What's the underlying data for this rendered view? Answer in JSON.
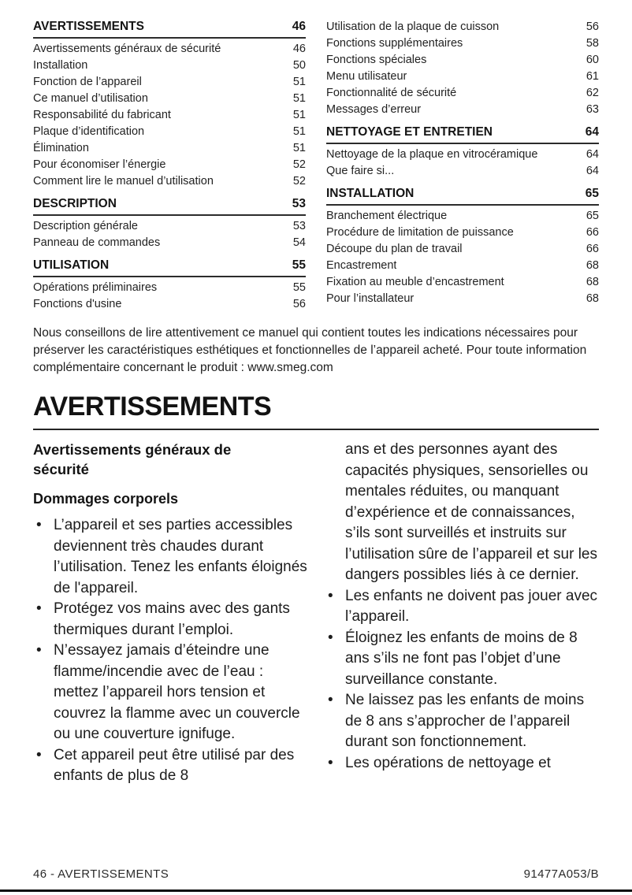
{
  "toc": {
    "left": [
      {
        "type": "header",
        "label": "AVERTISSEMENTS",
        "page": "46"
      },
      {
        "type": "entry",
        "label": "Avertissements généraux de sécurité",
        "page": "46"
      },
      {
        "type": "entry",
        "label": "Installation",
        "page": "50"
      },
      {
        "type": "entry",
        "label": "Fonction de l’appareil",
        "page": "51"
      },
      {
        "type": "entry",
        "label": "Ce manuel d’utilisation",
        "page": "51"
      },
      {
        "type": "entry",
        "label": "Responsabilité du fabricant",
        "page": "51"
      },
      {
        "type": "entry",
        "label": "Plaque d’identification",
        "page": "51"
      },
      {
        "type": "entry",
        "label": "Élimination",
        "page": "51"
      },
      {
        "type": "entry",
        "label": "Pour économiser l’énergie",
        "page": "52"
      },
      {
        "type": "entry",
        "label": "Comment lire le manuel d’utilisation",
        "page": "52"
      },
      {
        "type": "header",
        "label": "DESCRIPTION",
        "page": "53"
      },
      {
        "type": "entry",
        "label": "Description générale",
        "page": "53"
      },
      {
        "type": "entry",
        "label": "Panneau de commandes",
        "page": "54"
      },
      {
        "type": "header",
        "label": "UTILISATION",
        "page": "55"
      },
      {
        "type": "entry",
        "label": "Opérations préliminaires",
        "page": "55"
      },
      {
        "type": "entry",
        "label": "Fonctions d'usine",
        "page": "56"
      }
    ],
    "right": [
      {
        "type": "entry",
        "label": "Utilisation de la plaque de cuisson",
        "page": "56"
      },
      {
        "type": "entry",
        "label": "Fonctions supplémentaires",
        "page": "58"
      },
      {
        "type": "entry",
        "label": "Fonctions spéciales",
        "page": "60"
      },
      {
        "type": "entry",
        "label": "Menu utilisateur",
        "page": "61"
      },
      {
        "type": "entry",
        "label": "Fonctionnalité de sécurité",
        "page": "62"
      },
      {
        "type": "entry",
        "label": "Messages d’erreur",
        "page": "63"
      },
      {
        "type": "header",
        "label": "NETTOYAGE ET ENTRETIEN",
        "page": "64"
      },
      {
        "type": "entry",
        "label": "Nettoyage de la plaque en vitrocéramique",
        "page": "64"
      },
      {
        "type": "entry",
        "label": "Que faire si...",
        "page": "64"
      },
      {
        "type": "header",
        "label": "INSTALLATION",
        "page": "65"
      },
      {
        "type": "entry",
        "label": "Branchement électrique",
        "page": "65"
      },
      {
        "type": "entry",
        "label": "Procédure de limitation de puissance",
        "page": "66"
      },
      {
        "type": "entry",
        "label": "Découpe du plan de travail",
        "page": "66"
      },
      {
        "type": "entry",
        "label": "Encastrement",
        "page": "68"
      },
      {
        "type": "entry",
        "label": "Fixation au meuble d’encastrement",
        "page": "68"
      },
      {
        "type": "entry",
        "label": "Pour l’installateur",
        "page": "68"
      }
    ]
  },
  "intro": "Nous conseillons de lire attentivement ce manuel qui contient toutes les indications nécessaires pour préserver les caractéristiques esthétiques et fonctionnelles de l’appareil acheté. Pour toute information complémentaire concernant le produit : www.smeg.com",
  "section": {
    "title": "AVERTISSEMENTS",
    "left_column": {
      "heading": "Avertissements généraux de sécurité",
      "subheading": "Dommages corporels",
      "bullets": [
        "L’appareil et ses parties accessibles deviennent très chaudes durant l’utilisation. Tenez les enfants éloignés de l'appareil.",
        "Protégez vos mains avec des gants thermiques durant l’emploi.",
        "N’essayez jamais d’éteindre une flamme/incendie avec de l’eau : mettez l’appareil hors tension et couvrez la flamme avec un couvercle ou une couverture ignifuge.",
        "Cet appareil peut être utilisé par des enfants de plus de 8"
      ]
    },
    "right_column": {
      "continuation": "ans et des personnes ayant des capacités physiques, sensorielles ou mentales réduites, ou manquant d’expérience et de connaissances, s’ils sont surveillés et instruits sur l’utilisation sûre de l’appareil et sur les dangers possibles liés à ce dernier.",
      "bullets": [
        "Les enfants ne doivent pas jouer avec l’appareil.",
        "Éloignez les enfants de moins de 8 ans s’ils ne font pas l’objet d’une surveillance constante.",
        "Ne laissez pas les enfants de moins de 8 ans s’approcher de l’appareil durant son fonctionnement.",
        "Les opérations de nettoyage et"
      ]
    }
  },
  "footer": {
    "left": "46 - AVERTISSEMENTS",
    "right": "91477A053/B"
  }
}
